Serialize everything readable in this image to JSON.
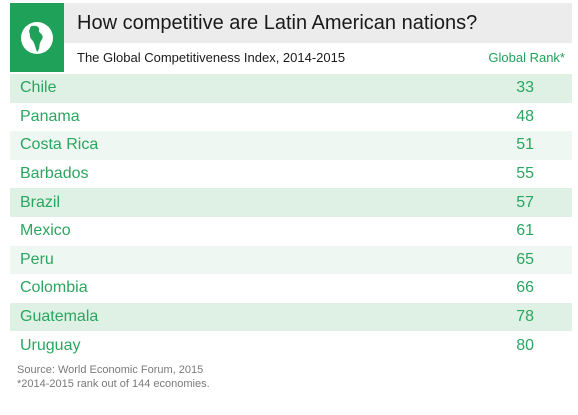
{
  "header": {
    "title": "How competitive are Latin American nations?",
    "subtitle": "The Global Competitiveness Index, 2014-2015",
    "rank_column": "Global Rank*",
    "icon": "globe-americas-icon",
    "accent_color": "#1fa15a"
  },
  "chart_data": {
    "type": "table",
    "title": "How competitive are Latin American nations?",
    "subtitle": "The Global Competitiveness Index, 2014-2015",
    "columns": [
      "",
      "Global Rank*"
    ],
    "categories": [
      "Chile",
      "Panama",
      "Costa Rica",
      "Barbados",
      "Brazil",
      "Mexico",
      "Peru",
      "Colombia",
      "Guatemala",
      "Uruguay"
    ],
    "values": [
      33,
      48,
      51,
      55,
      57,
      61,
      65,
      66,
      78,
      80
    ]
  },
  "footer": {
    "source": "Source: World Economic Forum, 2015",
    "note": "*2014-2015 rank out of 144 economies."
  }
}
